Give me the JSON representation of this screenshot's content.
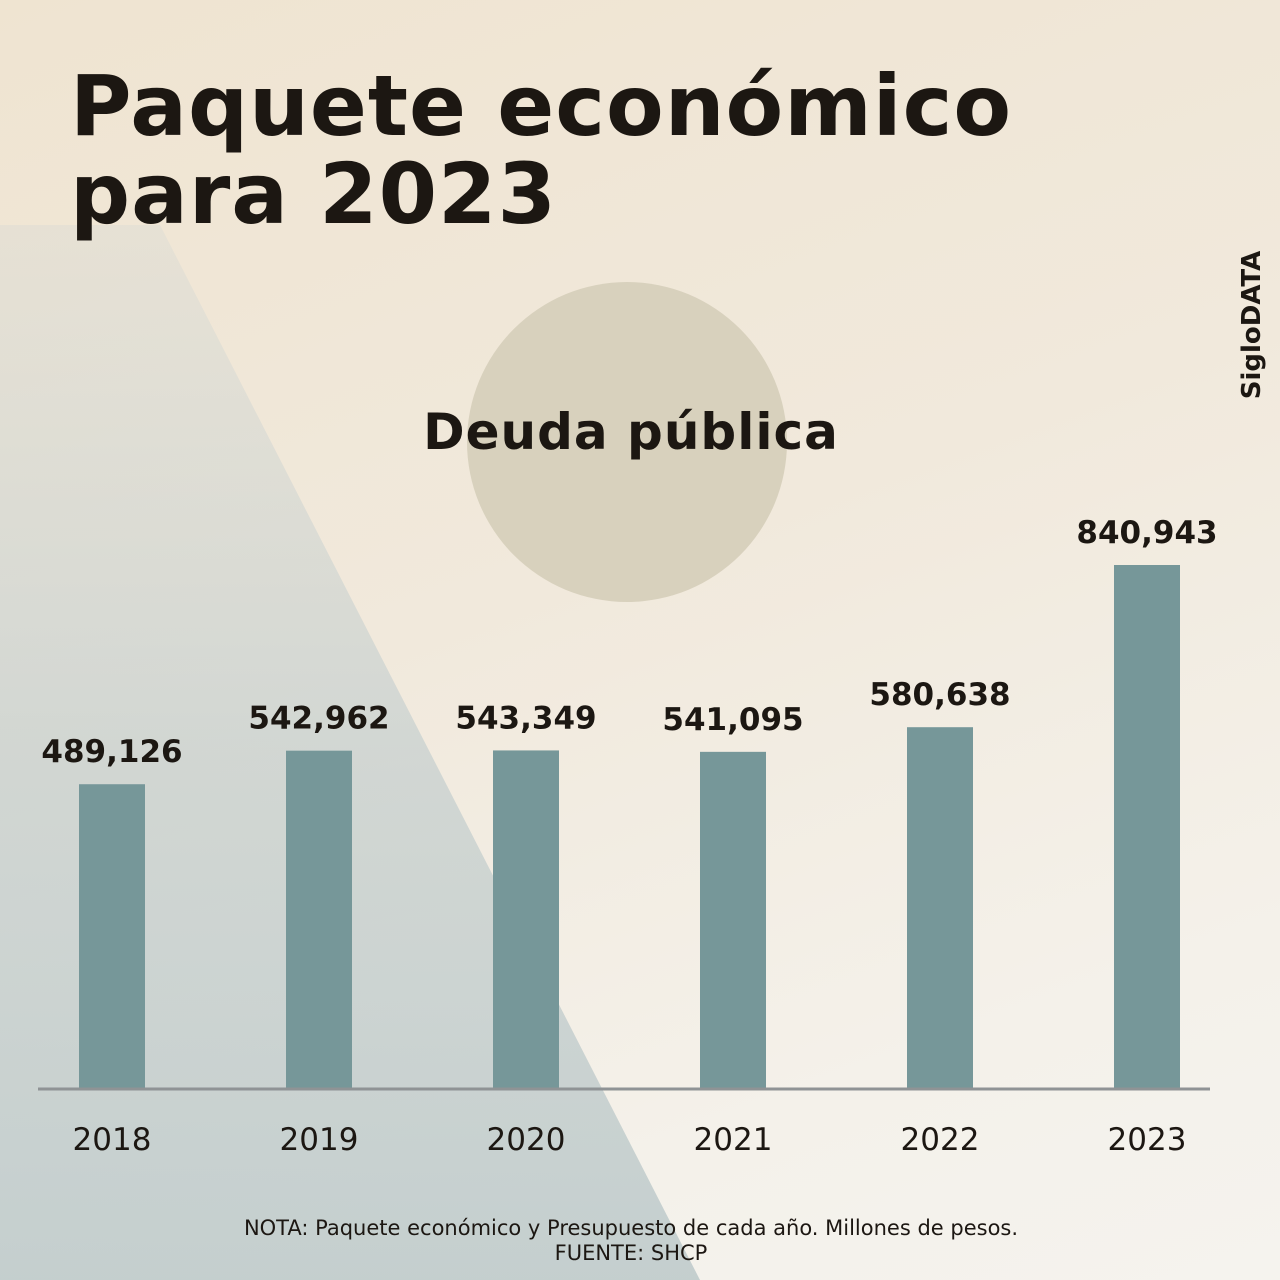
{
  "header": {
    "title_line1": "Paquete económico",
    "title_line2": "para 2023",
    "brand": "SigloDATA"
  },
  "footer": {
    "note": "NOTA: Paquete económico y Presupuesto de cada año. Millones de pesos.",
    "source": "FUENTE: SHCP"
  },
  "colors": {
    "bar": "#769799",
    "axis": "#8f9395",
    "circle": "#d8d1bd",
    "text": "#1c1712"
  },
  "chart_data": {
    "type": "bar",
    "title": "Deuda pública",
    "categories": [
      "2018",
      "2019",
      "2020",
      "2021",
      "2022",
      "2023"
    ],
    "values": [
      489126,
      542962,
      543349,
      541095,
      580638,
      840943
    ],
    "value_labels": [
      "489,126",
      "542,962",
      "543,349",
      "541,095",
      "580,638",
      "840,943"
    ],
    "xlabel": "",
    "ylabel": "",
    "unit": "Millones de pesos",
    "grid": false,
    "legend": "none"
  }
}
